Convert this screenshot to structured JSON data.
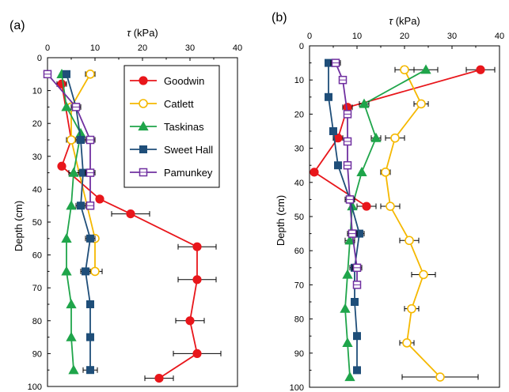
{
  "chart_data": [
    {
      "type": "line",
      "panel_label": "(a)",
      "xlabel_var": "τ",
      "xlabel_unit": " (kPa)",
      "ylabel": "Depth (cm)",
      "xlim": [
        0,
        40
      ],
      "ylim": [
        100,
        0
      ],
      "x_ticks": [
        0,
        10,
        20,
        30,
        40
      ],
      "y_ticks": [
        0,
        10,
        20,
        30,
        40,
        50,
        60,
        70,
        80,
        90,
        100
      ],
      "x_axis_position": "top",
      "legend_position": "top-right",
      "series": [
        {
          "name": "Goodwin",
          "color": "#e8161b",
          "marker": "circle-filled",
          "points": [
            [
              3,
              8,
              1
            ],
            [
              5,
              25,
              1
            ],
            [
              3,
              33,
              0
            ],
            [
              11,
              43,
              0
            ],
            [
              17.5,
              47.5,
              4
            ],
            [
              31.5,
              57.5,
              4
            ],
            [
              31.5,
              67.5,
              4
            ],
            [
              30,
              80,
              3
            ],
            [
              31.5,
              90,
              5
            ],
            [
              23.5,
              97.5,
              3
            ]
          ]
        },
        {
          "name": "Catlett",
          "color": "#f5b800",
          "marker": "circle-open",
          "points": [
            [
              9,
              5,
              1
            ],
            [
              5,
              15,
              1
            ],
            [
              5,
              25,
              1
            ],
            [
              10,
              55,
              0
            ],
            [
              10,
              65,
              1.5
            ]
          ]
        },
        {
          "name": "Taskinas",
          "color": "#1fa54a",
          "marker": "triangle-filled",
          "points": [
            [
              3,
              5,
              0
            ],
            [
              4,
              15,
              0
            ],
            [
              7,
              23,
              0
            ],
            [
              5.5,
              35,
              1
            ],
            [
              5,
              45,
              0
            ],
            [
              4,
              55,
              0
            ],
            [
              4,
              65,
              0
            ],
            [
              5,
              75,
              0
            ],
            [
              5,
              85,
              0
            ],
            [
              5.5,
              95,
              0
            ]
          ]
        },
        {
          "name": "Sweet Hall",
          "color": "#1f4e79",
          "marker": "square-filled",
          "points": [
            [
              4,
              5,
              0
            ],
            [
              6,
              15,
              1
            ],
            [
              7,
              25,
              1
            ],
            [
              7.5,
              35,
              1
            ],
            [
              7,
              45,
              1
            ],
            [
              9,
              55,
              1
            ],
            [
              8,
              65,
              1
            ],
            [
              9,
              75,
              0
            ],
            [
              9,
              85,
              0
            ],
            [
              9,
              95,
              1.5
            ]
          ]
        },
        {
          "name": "Pamunkey",
          "color": "#7030a0",
          "marker": "square-open",
          "points": [
            [
              0,
              5,
              0
            ],
            [
              6,
              15,
              0
            ],
            [
              9,
              25,
              1
            ],
            [
              9,
              35,
              1
            ],
            [
              9,
              45,
              0
            ]
          ]
        }
      ]
    },
    {
      "type": "line",
      "panel_label": "(b)",
      "xlabel_var": "τ",
      "xlabel_unit": " (kPa)",
      "ylabel": "Depth (cm)",
      "xlim": [
        0,
        40
      ],
      "ylim": [
        100,
        0
      ],
      "x_ticks": [
        0,
        10,
        20,
        30,
        40
      ],
      "y_ticks": [
        0,
        10,
        20,
        30,
        40,
        50,
        60,
        70,
        80,
        90,
        100
      ],
      "x_axis_position": "top",
      "series": [
        {
          "name": "Goodwin",
          "color": "#e8161b",
          "marker": "circle-filled",
          "points": [
            [
              36,
              7,
              3
            ],
            [
              8,
              18,
              1
            ],
            [
              6,
              27,
              1
            ],
            [
              1,
              37,
              0
            ],
            [
              12,
              47,
              2
            ]
          ]
        },
        {
          "name": "Catlett",
          "color": "#f5b800",
          "marker": "circle-open",
          "points": [
            [
              20,
              7,
              2
            ],
            [
              23.5,
              17,
              1.5
            ],
            [
              18,
              27,
              2
            ],
            [
              16,
              37,
              1
            ],
            [
              17,
              47,
              2
            ],
            [
              21,
              57,
              2
            ],
            [
              24,
              67,
              2.5
            ],
            [
              21.5,
              77,
              1.5
            ],
            [
              20.5,
              87,
              1.5
            ],
            [
              27.5,
              97,
              8
            ]
          ]
        },
        {
          "name": "Taskinas",
          "color": "#1fa54a",
          "marker": "triangle-filled",
          "points": [
            [
              24.5,
              7,
              2.5
            ],
            [
              11.5,
              17,
              1
            ],
            [
              14,
              27,
              1
            ],
            [
              11,
              37,
              0
            ],
            [
              9,
              47,
              0
            ],
            [
              8.5,
              57,
              1
            ],
            [
              8,
              67,
              0
            ],
            [
              7.5,
              77,
              0
            ],
            [
              8,
              87,
              0
            ],
            [
              8.5,
              97,
              0
            ]
          ]
        },
        {
          "name": "Sweet Hall",
          "color": "#1f4e79",
          "marker": "square-filled",
          "points": [
            [
              4,
              5,
              0
            ],
            [
              4,
              15,
              0
            ],
            [
              5,
              25,
              0
            ],
            [
              6,
              35,
              0
            ],
            [
              8.5,
              45,
              1
            ],
            [
              10.5,
              55,
              1
            ],
            [
              9.5,
              65,
              1
            ],
            [
              9.5,
              75,
              0
            ],
            [
              10,
              85,
              0
            ],
            [
              10,
              95,
              0
            ]
          ]
        },
        {
          "name": "Pamunkey",
          "color": "#7030a0",
          "marker": "square-open",
          "points": [
            [
              5.5,
              5,
              1
            ],
            [
              7,
              10,
              0
            ],
            [
              8,
              20,
              0
            ],
            [
              8,
              28,
              0
            ],
            [
              8,
              35,
              0
            ],
            [
              8.5,
              45,
              1
            ],
            [
              9,
              55,
              1
            ],
            [
              10,
              65,
              1
            ],
            [
              10,
              70,
              0
            ]
          ]
        }
      ]
    }
  ]
}
